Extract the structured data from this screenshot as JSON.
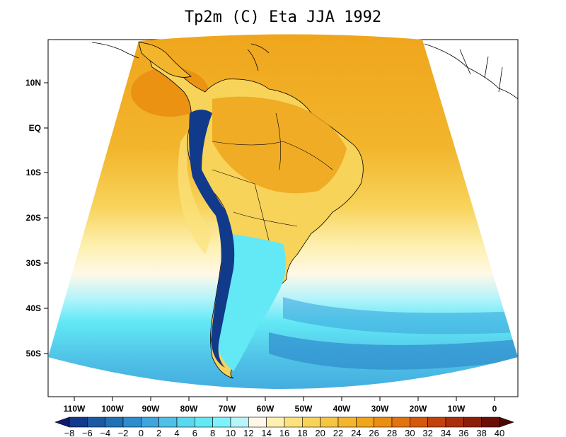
{
  "title": "Tp2m (C) Eta JJA 1992",
  "map": {
    "lat_labels": [
      "10N",
      "EQ",
      "10S",
      "20S",
      "30S",
      "40S",
      "50S"
    ],
    "lon_labels": [
      "110W",
      "100W",
      "90W",
      "80W",
      "70W",
      "60W",
      "50W",
      "40W",
      "30W",
      "20W",
      "10W",
      "0"
    ]
  },
  "colorbar": {
    "labels": [
      "−8",
      "−6",
      "−4",
      "−2",
      "0",
      "2",
      "4",
      "6",
      "8",
      "10",
      "12",
      "14",
      "16",
      "18",
      "20",
      "22",
      "24",
      "26",
      "28",
      "30",
      "32",
      "34",
      "36",
      "38",
      "40"
    ],
    "colors": [
      "#0d1a6e",
      "#123a8a",
      "#1a5aa4",
      "#2171b5",
      "#2f8ccd",
      "#3fa6dd",
      "#4fc0e6",
      "#5ad8ef",
      "#63e9f5",
      "#7ef2fb",
      "#b7f4fb",
      "#fff8e6",
      "#fdf0b0",
      "#fbe27e",
      "#f8d35a",
      "#f5c544",
      "#f2b52c",
      "#efa51c",
      "#ea8f12",
      "#e17410",
      "#d4580e",
      "#c2420c",
      "#a8300a",
      "#8c1f08",
      "#6b0f06",
      "#4a0805"
    ],
    "unit": "C"
  },
  "colors": {
    "ocean_tropical": "#f2b52c",
    "ocean_mid": "#fbe27e",
    "ocean_cool": "#63e9f5",
    "ocean_cold": "#2f8ccd",
    "andes": "#123a8a"
  }
}
